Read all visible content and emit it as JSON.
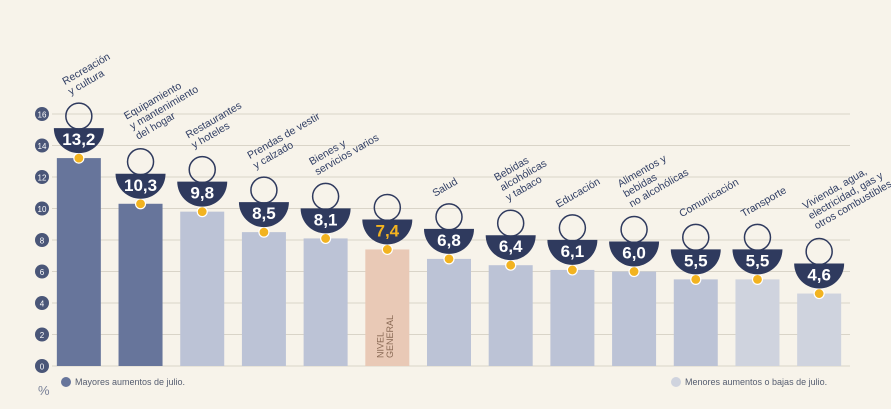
{
  "chart_data": {
    "type": "bar",
    "categories": [
      "Recreación\ny cultura",
      "Equipamiento\ny mantenimiento\ndel hogar",
      "Restaurantes\ny hoteles",
      "Prendas de vestir\ny calzado",
      "Bienes y\nservicios varios",
      null,
      "Salud",
      "Bebidas\nalcohólicas\ny tabaco",
      "Educación",
      "Alimentos y\nbebidas\nno alcohólicas",
      "Comunicación",
      "Transporte",
      "Vivienda, agua,\nelectricidad, gas y\notros combustibles"
    ],
    "values": [
      13.2,
      10.3,
      9.8,
      8.5,
      8.1,
      7.4,
      6.8,
      6.4,
      6.1,
      6.0,
      5.5,
      5.5,
      4.6
    ],
    "value_labels": [
      "13,2",
      "10,3",
      "9,8",
      "8,5",
      "8,1",
      "7,4",
      "6,8",
      "6,4",
      "6,1",
      "6,0",
      "5,5",
      "5,5",
      "4,6"
    ],
    "colors": [
      "#67759b",
      "#67759b",
      "#bcc3d6",
      "#bcc3d6",
      "#bcc3d6",
      "#e9c9b6",
      "#bcc3d6",
      "#bcc3d6",
      "#bcc3d6",
      "#bcc3d6",
      "#bcc3d6",
      "#cfd3de",
      "#cfd3de"
    ],
    "general_label": "NIVEL GENERAL",
    "ylim": [
      0,
      16
    ],
    "yticks": [
      0,
      2,
      4,
      6,
      8,
      10,
      12,
      14,
      16
    ],
    "grid": true,
    "y_unit": "%",
    "legend": [
      {
        "name": "Mayores aumentos de julio.",
        "color": "#67759b"
      },
      {
        "name": "Menores aumentos o bajas de julio.",
        "color": "#cfd3de"
      }
    ]
  }
}
